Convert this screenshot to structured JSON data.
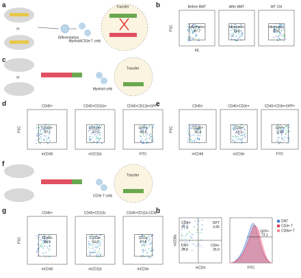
{
  "panels": {
    "a": {
      "letter": "a",
      "or": "or",
      "steps": [
        "Differentiation",
        "Transfer",
        "Myeloid/CD3e T cells"
      ]
    },
    "b": {
      "letter": "b",
      "y_axis": "FSC",
      "x_axis": "PE",
      "plots": [
        {
          "title": "Before BMT",
          "gate": "tdtomato+",
          "value": "87.7"
        },
        {
          "title": "After BMT",
          "gate": "tdtomato+",
          "value": "11.6"
        },
        {
          "title": "WT Ctrl",
          "gate": "tdtomato+",
          "value": "0.56"
        }
      ]
    },
    "c": {
      "letter": "c",
      "or": "or",
      "steps": [
        "Transfer",
        "Myeloid cells"
      ]
    },
    "d": {
      "letter": "d",
      "y_axis": "FSC",
      "plots": [
        {
          "title": "CD45+",
          "x_axis": "mCD45",
          "gate": "CD45+",
          "value": "97.1"
        },
        {
          "title": "CD45+CD11b+",
          "x_axis": "mCD11b",
          "gate": "CD11b+",
          "value": "37.0"
        },
        {
          "title": "CD45+CD11b+GFP+",
          "x_axis": "FITC",
          "gate": "GFP+",
          "value": "88.8"
        }
      ]
    },
    "e": {
      "letter": "e",
      "y_axis": "FSC",
      "plots": [
        {
          "title": "CD45+",
          "x_axis": "mCD45",
          "gate": "CD45+",
          "value": "96.4"
        },
        {
          "title": "CD45+CD3e+",
          "x_axis": "mCD3e",
          "gate": "CD3+",
          "value": "13.5"
        },
        {
          "title": "CD45+CD3e+GFP+",
          "x_axis": "FITC",
          "gate": "GFP+",
          "value": "0.46"
        }
      ]
    },
    "f": {
      "letter": "f",
      "steps": [
        "Transfer",
        "CD3e T cells"
      ]
    },
    "g": {
      "letter": "g",
      "y_axis": "FSC",
      "plots": [
        {
          "title": "CD45+",
          "x_axis": "mCD45",
          "gate": "CD45+",
          "value": "88.6"
        },
        {
          "title": "CD45+CD11b-",
          "x_axis": "mCD11b",
          "gate": "CD11b-",
          "value": "56.5"
        },
        {
          "title": "CD45+CD11b-CD3e+",
          "x_axis": "mCD3e",
          "gate": "CD3+",
          "value": "27.8"
        }
      ]
    },
    "h": {
      "letter": "h",
      "quadrant": {
        "y_axis": "mCD8a",
        "x_axis": "mCD4",
        "cells": [
          {
            "gate": "CD8+",
            "value": "41.9"
          },
          {
            "gate": "DPT",
            "value": "3.65"
          },
          {
            "gate": "DNT",
            "value": "28.8"
          },
          {
            "gate": "CD4+",
            "value": "26.0"
          }
        ]
      },
      "histogram": {
        "x_axis": "FITC",
        "gate": "GFP+",
        "value": "73.1"
      },
      "legend": [
        {
          "name": "DNT",
          "color": "#4a7fd4"
        },
        {
          "name": "CD4+ T",
          "color": "#e0405a"
        },
        {
          "name": "CD8a+ T",
          "color": "#f08aa0"
        }
      ]
    }
  }
}
